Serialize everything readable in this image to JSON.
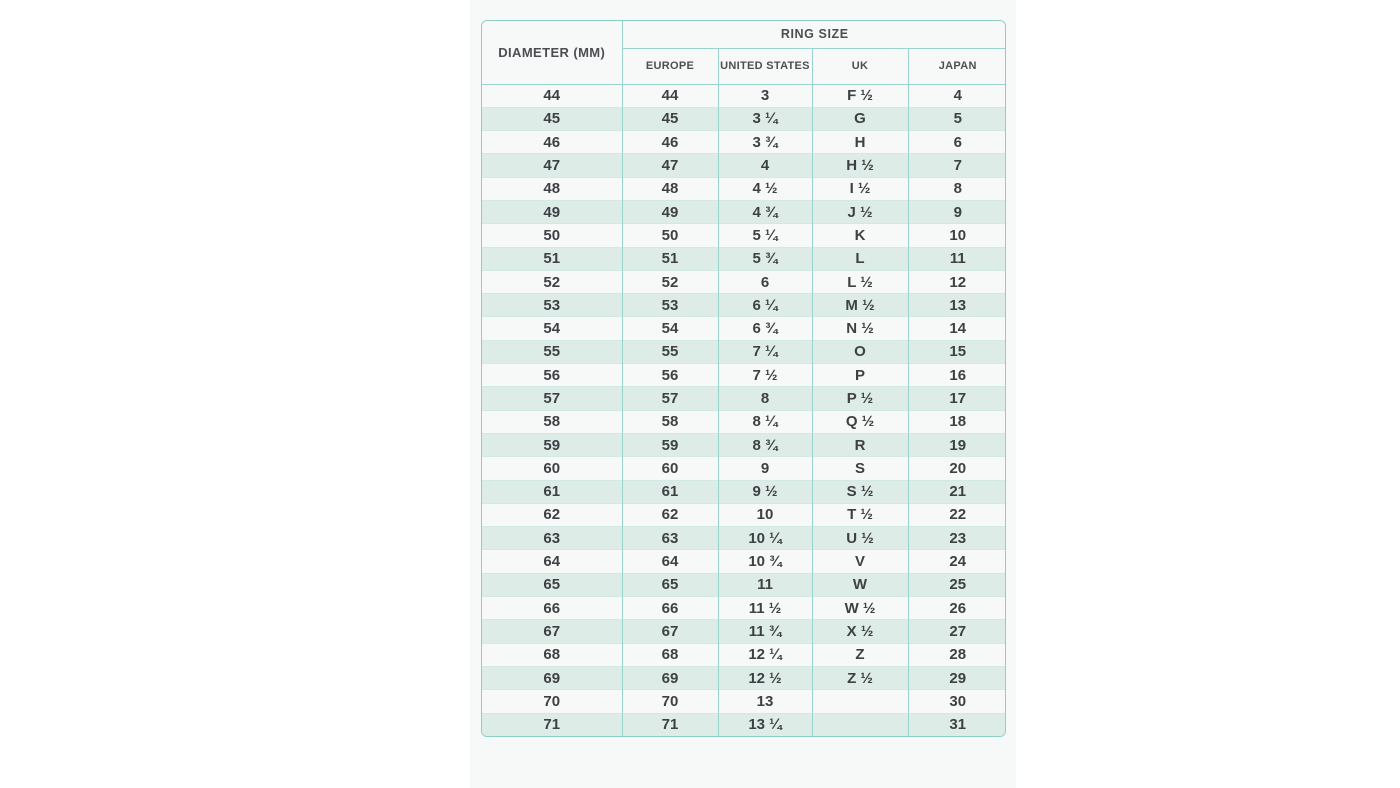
{
  "page": {
    "background": "#ffffff",
    "panel_background": "#f7f8f8"
  },
  "colors": {
    "table_border": "#8fcec5",
    "inner_border": "#9ad3cb",
    "row_separator": "#d3e9e4",
    "row_stripe": "#deece8",
    "row_base": "#f7f9f8",
    "header_text": "#4b4f52",
    "body_text": "#3e4144"
  },
  "chart_data": {
    "type": "table",
    "title": "RING SIZE",
    "column_group": {
      "label": "RING SIZE",
      "spans": [
        "EUROPE",
        "UNITED STATES",
        "UK",
        "JAPAN"
      ]
    },
    "columns": [
      "DIAMETER (MM)",
      "EUROPE",
      "UNITED STATES",
      "UK",
      "JAPAN"
    ],
    "rows": [
      [
        "44",
        "44",
        "3",
        "F ½",
        "4"
      ],
      [
        "45",
        "45",
        "3 ¼",
        "G",
        "5"
      ],
      [
        "46",
        "46",
        "3 ¾",
        "H",
        "6"
      ],
      [
        "47",
        "47",
        "4",
        "H ½",
        "7"
      ],
      [
        "48",
        "48",
        "4 ½",
        "I ½",
        "8"
      ],
      [
        "49",
        "49",
        "4 ¾",
        "J ½",
        "9"
      ],
      [
        "50",
        "50",
        "5 ¼",
        "K",
        "10"
      ],
      [
        "51",
        "51",
        "5 ¾",
        "L",
        "11"
      ],
      [
        "52",
        "52",
        "6",
        "L ½",
        "12"
      ],
      [
        "53",
        "53",
        "6 ¼",
        "M ½",
        "13"
      ],
      [
        "54",
        "54",
        "6 ¾",
        "N ½",
        "14"
      ],
      [
        "55",
        "55",
        "7 ¼",
        "O",
        "15"
      ],
      [
        "56",
        "56",
        "7 ½",
        "P",
        "16"
      ],
      [
        "57",
        "57",
        "8",
        "P ½",
        "17"
      ],
      [
        "58",
        "58",
        "8 ¼",
        "Q ½",
        "18"
      ],
      [
        "59",
        "59",
        "8 ¾",
        "R",
        "19"
      ],
      [
        "60",
        "60",
        "9",
        "S",
        "20"
      ],
      [
        "61",
        "61",
        "9 ½",
        "S ½",
        "21"
      ],
      [
        "62",
        "62",
        "10",
        "T ½",
        "22"
      ],
      [
        "63",
        "63",
        "10 ¼",
        "U ½",
        "23"
      ],
      [
        "64",
        "64",
        "10 ¾",
        "V",
        "24"
      ],
      [
        "65",
        "65",
        "11",
        "W",
        "25"
      ],
      [
        "66",
        "66",
        "11 ½",
        "W ½",
        "26"
      ],
      [
        "67",
        "67",
        "11 ¾",
        "X ½",
        "27"
      ],
      [
        "68",
        "68",
        "12 ¼",
        "Z",
        "28"
      ],
      [
        "69",
        "69",
        "12 ½",
        "Z ½",
        "29"
      ],
      [
        "70",
        "70",
        "13",
        "",
        "30"
      ],
      [
        "71",
        "71",
        "13 ¼",
        "",
        "31"
      ]
    ]
  }
}
